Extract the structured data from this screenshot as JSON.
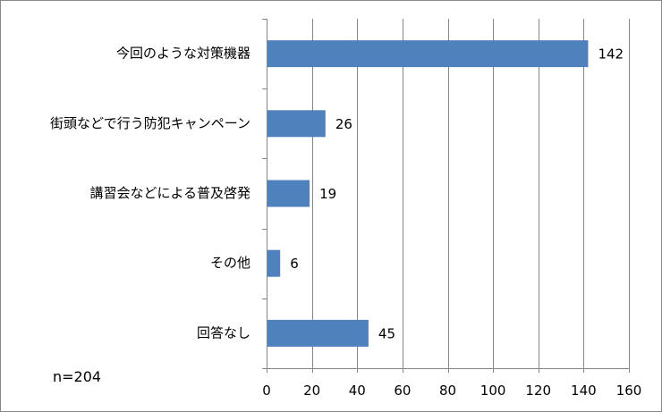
{
  "chart_data": {
    "type": "bar",
    "orientation": "horizontal",
    "categories": [
      "今回のような対策機器",
      "街頭などで行う防犯キャンペーン",
      "講習会などによる普及啓発",
      "その他",
      "回答なし"
    ],
    "values": [
      142,
      26,
      19,
      6,
      45
    ],
    "xlim": [
      0,
      160
    ],
    "xticks": [
      "0",
      "20",
      "40",
      "60",
      "80",
      "100",
      "120",
      "140",
      "160"
    ],
    "grid": "vertical",
    "bar_color": "#4F81BD",
    "data_labels": [
      "142",
      "26",
      "19",
      "6",
      "45"
    ]
  },
  "note": "n=204"
}
